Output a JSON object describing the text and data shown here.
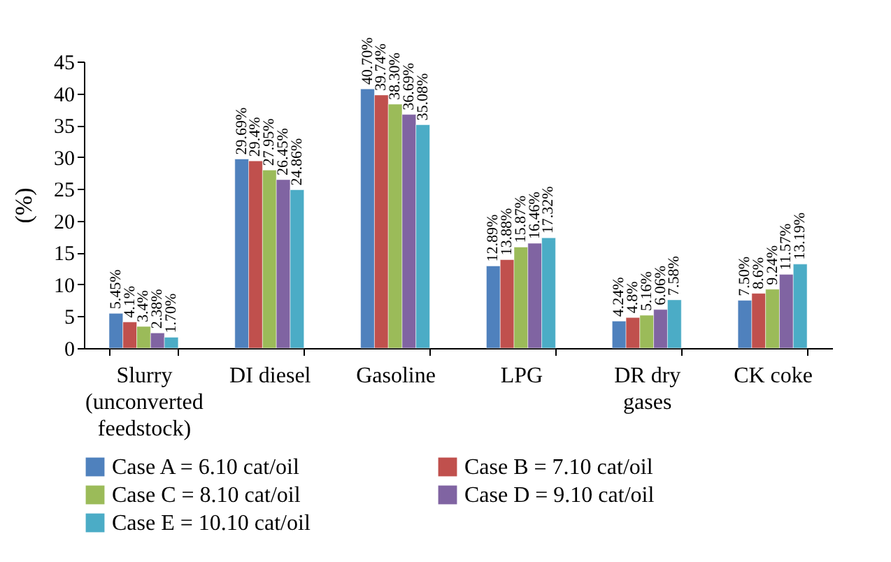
{
  "chart_data": {
    "type": "bar",
    "ylabel": "(%)",
    "categories": [
      "Slurry\n(unconverted\nfeedstock)",
      "DI diesel",
      "Gasoline",
      "LPG",
      "DR dry\ngases",
      "CK coke"
    ],
    "series": [
      {
        "name": "Case A = 6.10 cat/oil",
        "color": "#4f81bd",
        "values": [
          5.45,
          29.69,
          40.7,
          12.89,
          4.24,
          7.5
        ],
        "value_labels": [
          "5.45%",
          "29.69%",
          "40.70%",
          "12.89%",
          "4.24%",
          "7.50%"
        ]
      },
      {
        "name": "Case B = 7.10 cat/oil",
        "color": "#c0504d",
        "values": [
          4.1,
          29.4,
          39.74,
          13.88,
          4.8,
          8.6
        ],
        "value_labels": [
          "4.1%",
          "29.4%",
          "39.74%",
          "13.88%",
          "4.8%",
          "8.6%"
        ]
      },
      {
        "name": "Case C = 8.10 cat/oil",
        "color": "#9bbb59",
        "values": [
          3.4,
          27.95,
          38.3,
          15.87,
          5.16,
          9.24
        ],
        "value_labels": [
          "3.4%",
          "27.95%",
          "38.30%",
          "15.87%",
          "5.16%",
          "9.24%"
        ]
      },
      {
        "name": "Case D = 9.10 cat/oil",
        "color": "#8064a2",
        "values": [
          2.38,
          26.45,
          36.69,
          16.46,
          6.06,
          11.57
        ],
        "value_labels": [
          "2.38%",
          "26.45%",
          "36.69%",
          "16.46%",
          "6.06%",
          "11.57%"
        ]
      },
      {
        "name": "Case E = 10.10 cat/oil",
        "color": "#4bacc6",
        "values": [
          1.7,
          24.86,
          35.08,
          17.32,
          7.58,
          13.19
        ],
        "value_labels": [
          "1.70%",
          "24.86%",
          "35.08%",
          "17.32%",
          "7.58%",
          "13.19%"
        ]
      }
    ],
    "ylim": [
      0,
      45
    ],
    "yticks": [
      0,
      5,
      10,
      15,
      20,
      25,
      30,
      35,
      40,
      45
    ],
    "grid": false,
    "legend": "bottom"
  }
}
